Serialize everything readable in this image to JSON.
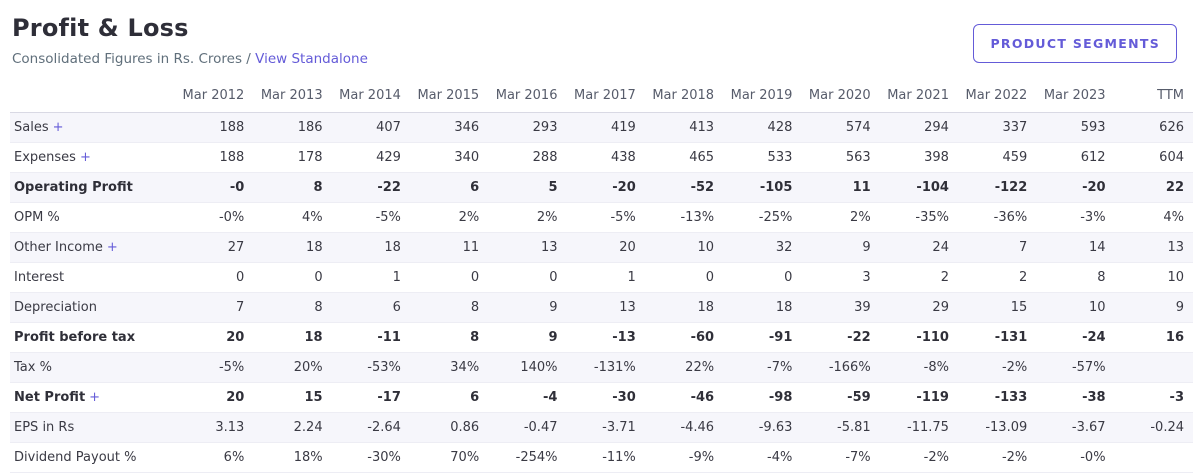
{
  "colors": {
    "accent": "#645bd8"
  },
  "header": {
    "title": "Profit & Loss",
    "subtitle_prefix": "Consolidated Figures in Rs. Crores /",
    "subtitle_link": "View Standalone",
    "button_label": "PRODUCT SEGMENTS"
  },
  "table": {
    "expand_symbol": "+",
    "columns": [
      "",
      "Mar 2012",
      "Mar 2013",
      "Mar 2014",
      "Mar 2015",
      "Mar 2016",
      "Mar 2017",
      "Mar 2018",
      "Mar 2019",
      "Mar 2020",
      "Mar 2021",
      "Mar 2022",
      "Mar 2023",
      "TTM"
    ],
    "rows": [
      {
        "label": "Sales",
        "expandable": true,
        "bold": false,
        "values": [
          "188",
          "186",
          "407",
          "346",
          "293",
          "419",
          "413",
          "428",
          "574",
          "294",
          "337",
          "593",
          "626"
        ]
      },
      {
        "label": "Expenses",
        "expandable": true,
        "bold": false,
        "values": [
          "188",
          "178",
          "429",
          "340",
          "288",
          "438",
          "465",
          "533",
          "563",
          "398",
          "459",
          "612",
          "604"
        ]
      },
      {
        "label": "Operating Profit",
        "expandable": false,
        "bold": true,
        "values": [
          "-0",
          "8",
          "-22",
          "6",
          "5",
          "-20",
          "-52",
          "-105",
          "11",
          "-104",
          "-122",
          "-20",
          "22"
        ]
      },
      {
        "label": "OPM %",
        "expandable": false,
        "bold": false,
        "values": [
          "-0%",
          "4%",
          "-5%",
          "2%",
          "2%",
          "-5%",
          "-13%",
          "-25%",
          "2%",
          "-35%",
          "-36%",
          "-3%",
          "4%"
        ]
      },
      {
        "label": "Other Income",
        "expandable": true,
        "bold": false,
        "values": [
          "27",
          "18",
          "18",
          "11",
          "13",
          "20",
          "10",
          "32",
          "9",
          "24",
          "7",
          "14",
          "13"
        ]
      },
      {
        "label": "Interest",
        "expandable": false,
        "bold": false,
        "values": [
          "0",
          "0",
          "1",
          "0",
          "0",
          "1",
          "0",
          "0",
          "3",
          "2",
          "2",
          "8",
          "10"
        ]
      },
      {
        "label": "Depreciation",
        "expandable": false,
        "bold": false,
        "values": [
          "7",
          "8",
          "6",
          "8",
          "9",
          "13",
          "18",
          "18",
          "39",
          "29",
          "15",
          "10",
          "9"
        ]
      },
      {
        "label": "Profit before tax",
        "expandable": false,
        "bold": true,
        "values": [
          "20",
          "18",
          "-11",
          "8",
          "9",
          "-13",
          "-60",
          "-91",
          "-22",
          "-110",
          "-131",
          "-24",
          "16"
        ]
      },
      {
        "label": "Tax %",
        "expandable": false,
        "bold": false,
        "values": [
          "-5%",
          "20%",
          "-53%",
          "34%",
          "140%",
          "-131%",
          "22%",
          "-7%",
          "-166%",
          "-8%",
          "-2%",
          "-57%",
          ""
        ]
      },
      {
        "label": "Net Profit",
        "expandable": true,
        "bold": true,
        "values": [
          "20",
          "15",
          "-17",
          "6",
          "-4",
          "-30",
          "-46",
          "-98",
          "-59",
          "-119",
          "-133",
          "-38",
          "-3"
        ]
      },
      {
        "label": "EPS in Rs",
        "expandable": false,
        "bold": false,
        "values": [
          "3.13",
          "2.24",
          "-2.64",
          "0.86",
          "-0.47",
          "-3.71",
          "-4.46",
          "-9.63",
          "-5.81",
          "-11.75",
          "-13.09",
          "-3.67",
          "-0.24"
        ]
      },
      {
        "label": "Dividend Payout %",
        "expandable": false,
        "bold": false,
        "values": [
          "6%",
          "18%",
          "-30%",
          "70%",
          "-254%",
          "-11%",
          "-9%",
          "-4%",
          "-7%",
          "-2%",
          "-2%",
          "-0%",
          ""
        ]
      }
    ]
  }
}
